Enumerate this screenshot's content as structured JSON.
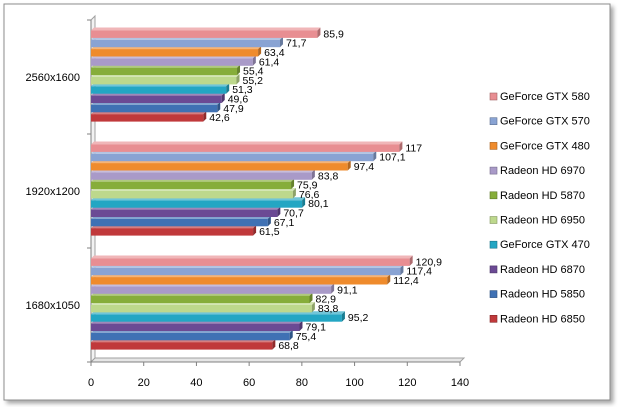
{
  "chart_data": {
    "type": "bar",
    "orientation": "horizontal",
    "categories": [
      "2560x1600",
      "1920x1200",
      "1680x1050"
    ],
    "xlim": [
      0,
      140
    ],
    "xticks": [
      "0",
      "20",
      "40",
      "60",
      "80",
      "100",
      "120",
      "140"
    ],
    "grid": false,
    "legend_position": "right",
    "series": [
      {
        "name": "Radeon HD 6850",
        "color": "#c0393b",
        "values": [
          42.6,
          61.5,
          68.8
        ],
        "labels": [
          "42,6",
          "61,5",
          "68,8"
        ]
      },
      {
        "name": "Radeon HD 5850",
        "color": "#3f71b4",
        "values": [
          47.9,
          67.1,
          75.4
        ],
        "labels": [
          "47,9",
          "67,1",
          "75,4"
        ]
      },
      {
        "name": "Radeon HD 6870",
        "color": "#6b4a94",
        "values": [
          49.6,
          70.7,
          79.1
        ],
        "labels": [
          "49,6",
          "70,7",
          "79,1"
        ]
      },
      {
        "name": "GeForce GTX 470",
        "color": "#23a6c3",
        "values": [
          51.3,
          80.1,
          95.2
        ],
        "labels": [
          "51,3",
          "80,1",
          "95,2"
        ]
      },
      {
        "name": "Radeon HD 6950",
        "color": "#bdd88c",
        "values": [
          55.2,
          76.6,
          83.8
        ],
        "labels": [
          "55,2",
          "76,6",
          "83,8"
        ]
      },
      {
        "name": "Radeon HD 5870",
        "color": "#86ad3a",
        "values": [
          55.4,
          75.9,
          82.9
        ],
        "labels": [
          "55,4",
          "75,9",
          "82,9"
        ]
      },
      {
        "name": "Radeon HD 6970",
        "color": "#a99ac8",
        "values": [
          61.4,
          83.8,
          91.1
        ],
        "labels": [
          "61,4",
          "83,8",
          "91,1"
        ]
      },
      {
        "name": "GeForce GTX 480",
        "color": "#ef8b2c",
        "values": [
          63.4,
          97.4,
          112.4
        ],
        "labels": [
          "63,4",
          "97,4",
          "112,4"
        ]
      },
      {
        "name": "GeForce GTX 570",
        "color": "#89a3d3",
        "values": [
          71.7,
          107.1,
          117.4
        ],
        "labels": [
          "71,7",
          "107,1",
          "117,4"
        ]
      },
      {
        "name": "GeForce GTX 580",
        "color": "#e88e92",
        "values": [
          85.9,
          117,
          120.9
        ],
        "labels": [
          "85,9",
          "117",
          "120,9"
        ]
      }
    ]
  }
}
